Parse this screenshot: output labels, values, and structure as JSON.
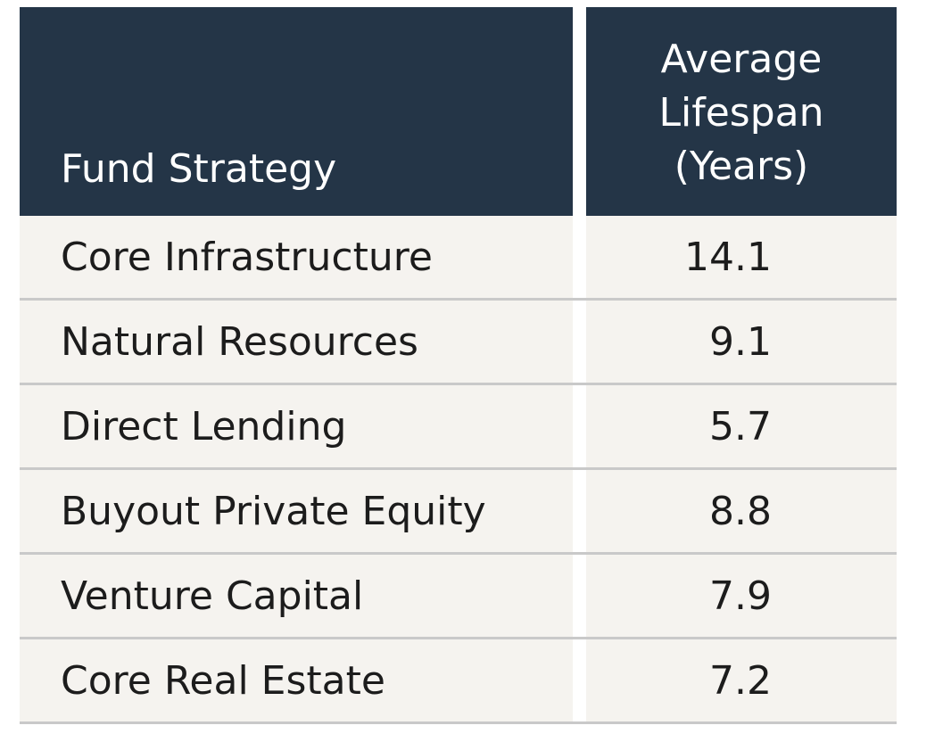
{
  "chart_data": {
    "type": "table",
    "columns": [
      "Fund Strategy",
      "Average Lifespan (Years)"
    ],
    "rows": [
      {
        "strategy": "Core Infrastructure",
        "lifespan": "14.1"
      },
      {
        "strategy": "Natural Resources",
        "lifespan": "9.1"
      },
      {
        "strategy": "Direct Lending",
        "lifespan": "5.7"
      },
      {
        "strategy": "Buyout Private Equity",
        "lifespan": "8.8"
      },
      {
        "strategy": "Venture Capital",
        "lifespan": "7.9"
      },
      {
        "strategy": "Core Real Estate",
        "lifespan": "7.2"
      }
    ]
  },
  "colors": {
    "header_bg": "#243547",
    "header_text": "#ffffff",
    "row_bg": "#f5f3ef",
    "divider": "#c9c9c9"
  }
}
